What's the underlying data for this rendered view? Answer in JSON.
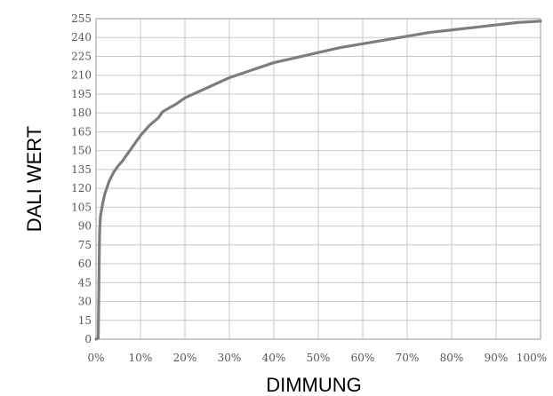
{
  "chart_data": {
    "type": "line",
    "xlabel": "DIMMUNG",
    "ylabel": "DALI WERT",
    "x_ticks": [
      "0%",
      "10%",
      "20%",
      "30%",
      "40%",
      "50%",
      "60%",
      "70%",
      "80%",
      "90%",
      "100%"
    ],
    "y_ticks": [
      "0",
      "15",
      "30",
      "45",
      "60",
      "75",
      "90",
      "105",
      "120",
      "135",
      "150",
      "165",
      "180",
      "195",
      "210",
      "225",
      "240",
      "255"
    ],
    "xlim": [
      0,
      100
    ],
    "ylim": [
      0,
      255
    ],
    "grid": true,
    "line_color": "#7d7d7d",
    "series": [
      {
        "x": [
          0,
          0.5,
          0.8,
          1,
          1.5,
          2,
          3,
          4,
          5,
          6,
          8,
          10,
          12,
          14,
          15,
          18,
          20,
          25,
          30,
          35,
          40,
          45,
          50,
          55,
          60,
          65,
          70,
          75,
          80,
          85,
          90,
          95,
          100
        ],
        "y": [
          0,
          1,
          85,
          98,
          108,
          116,
          126,
          133,
          138,
          142,
          152,
          162,
          170,
          176,
          181,
          187,
          192,
          200,
          208,
          214,
          220,
          224,
          228,
          232,
          235,
          238,
          241,
          244,
          246,
          248,
          250,
          252,
          253
        ]
      }
    ]
  }
}
